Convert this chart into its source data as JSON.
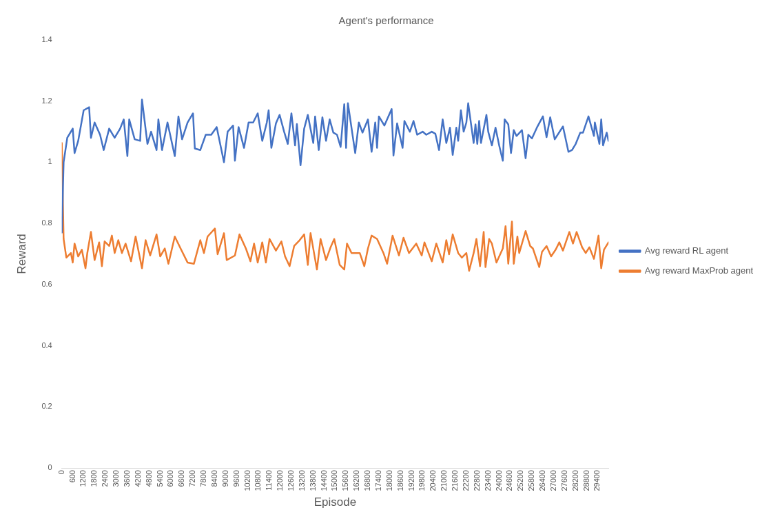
{
  "chart_data": {
    "type": "line",
    "title": "Agent's performance",
    "xlabel": "Episode",
    "ylabel": "Reward",
    "xlim": [
      0,
      30000
    ],
    "xticks": [
      0,
      600,
      1200,
      1800,
      2400,
      3000,
      3600,
      4200,
      4800,
      5400,
      6000,
      6600,
      7200,
      7800,
      8400,
      9000,
      9600,
      10200,
      10800,
      11400,
      12000,
      12600,
      13200,
      13800,
      14400,
      15000,
      15600,
      16200,
      16800,
      17400,
      18000,
      18600,
      19200,
      19800,
      20400,
      21000,
      21600,
      22200,
      22800,
      23400,
      24000,
      24600,
      25200,
      25800,
      26400,
      27000,
      27600,
      28200,
      28800,
      29400
    ],
    "ylim": [
      0,
      1.4
    ],
    "yticks": [
      0,
      0.2,
      0.4,
      0.6,
      0.8,
      1,
      1.2,
      1.4
    ],
    "grid": false,
    "legend": "right",
    "marker": "none",
    "line_style": "solid",
    "series": [
      {
        "name": "Avg reward RL agent",
        "color": "#4472c4",
        "x": [
          0,
          100,
          300,
          600,
          700,
          900,
          1200,
          1500,
          1600,
          1800,
          2100,
          2300,
          2600,
          2900,
          3200,
          3400,
          3600,
          3700,
          4000,
          4300,
          4400,
          4700,
          4900,
          5200,
          5300,
          5500,
          5800,
          6200,
          6400,
          6600,
          6900,
          7200,
          7300,
          7600,
          7900,
          8200,
          8500,
          8900,
          9100,
          9400,
          9500,
          9700,
          10000,
          10250,
          10500,
          10750,
          11000,
          11250,
          11350,
          11500,
          11750,
          11950,
          12200,
          12400,
          12600,
          12800,
          12900,
          13100,
          13300,
          13500,
          13800,
          13900,
          14100,
          14300,
          14500,
          14700,
          14900,
          15100,
          15300,
          15500,
          15600,
          15700,
          16100,
          16300,
          16500,
          16800,
          17000,
          17200,
          17300,
          17400,
          17700,
          18100,
          18200,
          18400,
          18700,
          18800,
          19100,
          19300,
          19500,
          19800,
          20000,
          20300,
          20500,
          20700,
          20900,
          21100,
          21300,
          21450,
          21650,
          21750,
          21900,
          22050,
          22200,
          22300,
          22600,
          22700,
          22800,
          22900,
          23000,
          23300,
          23400,
          23600,
          23800,
          24000,
          24200,
          24300,
          24500,
          24650,
          24800,
          24950,
          25250,
          25450,
          25600,
          25800,
          26100,
          26400,
          26600,
          26800,
          27050,
          27500,
          27800,
          28000,
          28200,
          28450,
          28600,
          28900,
          29200,
          29250,
          29500,
          29600,
          29700,
          29900,
          30000
        ],
        "values": [
          0.77,
          1.0,
          1.08,
          1.11,
          1.03,
          1.07,
          1.17,
          1.18,
          1.08,
          1.13,
          1.09,
          1.04,
          1.11,
          1.08,
          1.11,
          1.14,
          1.02,
          1.14,
          1.075,
          1.07,
          1.205,
          1.06,
          1.1,
          1.04,
          1.14,
          1.04,
          1.13,
          1.02,
          1.15,
          1.075,
          1.13,
          1.16,
          1.045,
          1.04,
          1.09,
          1.09,
          1.115,
          1.0,
          1.1,
          1.12,
          1.005,
          1.115,
          1.047,
          1.13,
          1.13,
          1.16,
          1.07,
          1.13,
          1.17,
          1.047,
          1.127,
          1.155,
          1.1,
          1.06,
          1.16,
          1.055,
          1.125,
          0.99,
          1.11,
          1.155,
          1.063,
          1.15,
          1.04,
          1.147,
          1.07,
          1.14,
          1.097,
          1.09,
          1.05,
          1.19,
          1.047,
          1.193,
          1.03,
          1.13,
          1.097,
          1.14,
          1.034,
          1.13,
          1.047,
          1.15,
          1.12,
          1.174,
          1.022,
          1.127,
          1.047,
          1.135,
          1.1,
          1.135,
          1.09,
          1.1,
          1.09,
          1.1,
          1.093,
          1.04,
          1.14,
          1.063,
          1.113,
          1.024,
          1.113,
          1.07,
          1.17,
          1.1,
          1.13,
          1.193,
          1.063,
          1.124,
          1.06,
          1.135,
          1.063,
          1.155,
          1.1,
          1.055,
          1.113,
          1.055,
          1.005,
          1.14,
          1.124,
          1.03,
          1.105,
          1.086,
          1.105,
          1.013,
          1.09,
          1.078,
          1.117,
          1.15,
          1.082,
          1.147,
          1.075,
          1.117,
          1.034,
          1.04,
          1.06,
          1.097,
          1.097,
          1.15,
          1.086,
          1.13,
          1.06,
          1.14,
          1.055,
          1.097,
          1.07
        ]
      },
      {
        "name": "Avg reward MaxProb agent",
        "color": "#ed7d31",
        "x": [
          0,
          100,
          250,
          500,
          600,
          700,
          900,
          1100,
          1300,
          1400,
          1600,
          1800,
          2050,
          2200,
          2350,
          2600,
          2750,
          2900,
          3100,
          3300,
          3500,
          3800,
          4050,
          4400,
          4600,
          4850,
          5200,
          5400,
          5650,
          5850,
          6200,
          6550,
          6900,
          7250,
          7600,
          7800,
          8000,
          8400,
          8550,
          8900,
          9050,
          9500,
          9750,
          10100,
          10350,
          10550,
          10750,
          11000,
          11200,
          11400,
          11750,
          12050,
          12250,
          12500,
          12750,
          13050,
          13300,
          13500,
          13650,
          14000,
          14200,
          14500,
          14750,
          14950,
          15250,
          15500,
          15650,
          15900,
          16350,
          16600,
          16800,
          17000,
          17300,
          17650,
          17850,
          18150,
          18500,
          18750,
          19050,
          19450,
          19750,
          19900,
          20300,
          20550,
          20900,
          21100,
          21250,
          21450,
          21750,
          21950,
          22200,
          22350,
          22600,
          22750,
          22950,
          23150,
          23250,
          23450,
          23600,
          23850,
          24200,
          24350,
          24500,
          24700,
          24800,
          25000,
          25100,
          25450,
          25700,
          25850,
          26200,
          26350,
          26600,
          26850,
          27100,
          27300,
          27500,
          27850,
          28050,
          28250,
          28550,
          28750,
          28950,
          29200,
          29450,
          29600,
          29750,
          30000
        ],
        "values": [
          1.063,
          0.749,
          0.688,
          0.703,
          0.672,
          0.734,
          0.692,
          0.714,
          0.653,
          0.703,
          0.772,
          0.68,
          0.738,
          0.66,
          0.741,
          0.726,
          0.76,
          0.703,
          0.745,
          0.703,
          0.734,
          0.676,
          0.757,
          0.653,
          0.745,
          0.695,
          0.764,
          0.692,
          0.718,
          0.668,
          0.757,
          0.714,
          0.672,
          0.668,
          0.745,
          0.703,
          0.757,
          0.783,
          0.699,
          0.768,
          0.68,
          0.695,
          0.764,
          0.718,
          0.676,
          0.734,
          0.672,
          0.738,
          0.672,
          0.749,
          0.711,
          0.741,
          0.692,
          0.66,
          0.726,
          0.745,
          0.764,
          0.664,
          0.768,
          0.649,
          0.749,
          0.68,
          0.722,
          0.749,
          0.664,
          0.649,
          0.734,
          0.703,
          0.703,
          0.66,
          0.718,
          0.76,
          0.749,
          0.703,
          0.668,
          0.76,
          0.695,
          0.753,
          0.703,
          0.734,
          0.695,
          0.738,
          0.676,
          0.734,
          0.672,
          0.745,
          0.699,
          0.764,
          0.703,
          0.688,
          0.703,
          0.645,
          0.703,
          0.749,
          0.66,
          0.772,
          0.657,
          0.749,
          0.734,
          0.672,
          0.718,
          0.791,
          0.668,
          0.806,
          0.668,
          0.757,
          0.703,
          0.775,
          0.726,
          0.718,
          0.657,
          0.707,
          0.726,
          0.692,
          0.714,
          0.738,
          0.711,
          0.772,
          0.734,
          0.772,
          0.722,
          0.703,
          0.722,
          0.684,
          0.76,
          0.653,
          0.714,
          0.738
        ]
      }
    ]
  }
}
